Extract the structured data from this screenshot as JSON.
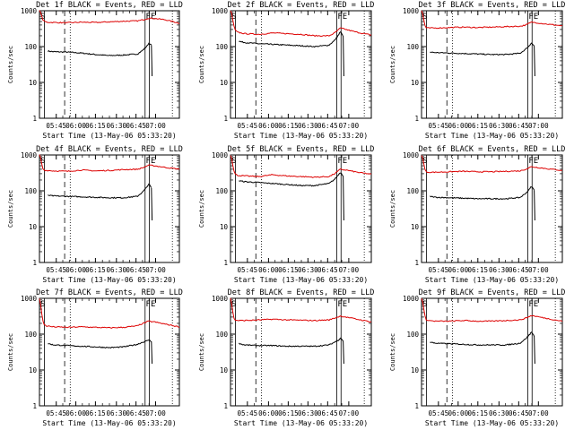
{
  "chart_data": [
    {
      "type": "line",
      "title": "Det 1f BLACK = Events, RED = LLD",
      "xlabel": "Start Time (13-May-06 05:33:20)",
      "ylabel": "Counts/sec",
      "ylim": [
        1,
        1000
      ],
      "yscale": "log",
      "yticks": [
        "1",
        "10",
        "100",
        "1000"
      ],
      "xticks": [
        "05:45",
        "06:00",
        "06:15",
        "06:30",
        "06:45",
        "07:00"
      ],
      "markers": [
        "S",
        "FE"
      ],
      "series": [
        {
          "color": "#000000",
          "x": [
            0.06,
            0.1,
            0.2,
            0.3,
            0.4,
            0.5,
            0.6,
            0.7,
            0.74,
            0.77,
            0.78,
            0.8
          ],
          "y": [
            75,
            72,
            70,
            66,
            60,
            56,
            58,
            62,
            80,
            105,
            125,
            110
          ]
        },
        {
          "color": "#dd0000",
          "x": [
            0.0,
            0.01,
            0.02,
            0.03,
            0.05,
            0.1,
            0.2,
            0.3,
            0.4,
            0.5,
            0.6,
            0.7,
            0.74,
            0.78,
            0.82,
            0.9,
            1.0
          ],
          "y": [
            1000,
            900,
            600,
            520,
            480,
            470,
            460,
            480,
            470,
            490,
            510,
            520,
            560,
            620,
            610,
            560,
            450
          ]
        }
      ]
    },
    {
      "type": "line",
      "title": "Det 2f BLACK = Events, RED = LLD",
      "xlabel": "Start Time (13-May-06 05:33:20)",
      "ylabel": "Counts/sec",
      "ylim": [
        1,
        1000
      ],
      "yscale": "log",
      "yticks": [
        "1",
        "10",
        "100",
        "1000"
      ],
      "xticks": [
        "05:45",
        "06:00",
        "06:15",
        "06:30",
        "06:45",
        "07:00"
      ],
      "markers": [
        "S",
        "FE"
      ],
      "series": [
        {
          "color": "#000000",
          "x": [
            0.06,
            0.1,
            0.2,
            0.3,
            0.4,
            0.5,
            0.6,
            0.7,
            0.74,
            0.77,
            0.78,
            0.8
          ],
          "y": [
            140,
            130,
            120,
            115,
            110,
            105,
            100,
            110,
            150,
            220,
            260,
            200
          ]
        },
        {
          "color": "#dd0000",
          "x": [
            0.0,
            0.01,
            0.02,
            0.03,
            0.05,
            0.1,
            0.2,
            0.3,
            0.4,
            0.5,
            0.6,
            0.7,
            0.74,
            0.78,
            0.82,
            0.9,
            1.0
          ],
          "y": [
            1000,
            800,
            450,
            300,
            250,
            230,
            220,
            240,
            230,
            220,
            200,
            200,
            240,
            330,
            300,
            250,
            210
          ]
        }
      ]
    },
    {
      "type": "line",
      "title": "Det 3f BLACK = Events, RED = LLD",
      "xlabel": "Start Time (13-May-06 05:33:20)",
      "ylabel": "Counts/sec",
      "ylim": [
        1,
        1000
      ],
      "yscale": "log",
      "yticks": [
        "1",
        "10",
        "100",
        "1000"
      ],
      "xticks": [
        "05:45",
        "06:00",
        "06:15",
        "06:30",
        "06:45",
        "07:00"
      ],
      "markers": [
        "S",
        "FE"
      ],
      "series": [
        {
          "color": "#000000",
          "x": [
            0.06,
            0.1,
            0.2,
            0.3,
            0.4,
            0.5,
            0.6,
            0.7,
            0.74,
            0.77,
            0.78,
            0.8
          ],
          "y": [
            70,
            68,
            66,
            64,
            62,
            60,
            60,
            65,
            85,
            110,
            130,
            105
          ]
        },
        {
          "color": "#dd0000",
          "x": [
            0.0,
            0.01,
            0.02,
            0.03,
            0.05,
            0.1,
            0.2,
            0.3,
            0.4,
            0.5,
            0.6,
            0.7,
            0.74,
            0.78,
            0.82,
            0.9,
            1.0
          ],
          "y": [
            1000,
            800,
            450,
            330,
            330,
            330,
            340,
            350,
            340,
            350,
            360,
            370,
            400,
            480,
            460,
            420,
            380
          ]
        }
      ]
    },
    {
      "type": "line",
      "title": "Det 4f BLACK = Events, RED = LLD",
      "xlabel": "Start Time (13-May-06 05:33:20)",
      "ylabel": "Counts/sec",
      "ylim": [
        1,
        1000
      ],
      "yscale": "log",
      "yticks": [
        "1",
        "10",
        "100",
        "1000"
      ],
      "xticks": [
        "05:45",
        "06:00",
        "06:15",
        "06:30",
        "06:45",
        "07:00"
      ],
      "markers": [
        "S",
        "FE"
      ],
      "series": [
        {
          "color": "#000000",
          "x": [
            0.06,
            0.1,
            0.2,
            0.3,
            0.4,
            0.5,
            0.6,
            0.7,
            0.74,
            0.77,
            0.78,
            0.8
          ],
          "y": [
            75,
            72,
            70,
            68,
            66,
            64,
            64,
            70,
            95,
            130,
            160,
            120
          ]
        },
        {
          "color": "#dd0000",
          "x": [
            0.0,
            0.01,
            0.02,
            0.03,
            0.05,
            0.1,
            0.2,
            0.3,
            0.4,
            0.5,
            0.6,
            0.7,
            0.74,
            0.78,
            0.82,
            0.9,
            1.0
          ],
          "y": [
            1000,
            800,
            450,
            380,
            370,
            360,
            350,
            380,
            360,
            370,
            390,
            400,
            440,
            520,
            500,
            450,
            400
          ]
        }
      ]
    },
    {
      "type": "line",
      "title": "Det 5f BLACK = Events, RED = LLD",
      "xlabel": "Start Time (13-May-06 05:33:20)",
      "ylabel": "Counts/sec",
      "ylim": [
        1,
        1000
      ],
      "yscale": "log",
      "yticks": [
        "1",
        "10",
        "100",
        "1000"
      ],
      "xticks": [
        "05:45",
        "06:00",
        "06:15",
        "06:30",
        "06:45",
        "07:00"
      ],
      "markers": [
        "S",
        "FE"
      ],
      "series": [
        {
          "color": "#000000",
          "x": [
            0.06,
            0.1,
            0.2,
            0.3,
            0.4,
            0.5,
            0.6,
            0.7,
            0.74,
            0.77,
            0.78,
            0.8
          ],
          "y": [
            190,
            180,
            170,
            160,
            150,
            140,
            140,
            160,
            210,
            290,
            330,
            260
          ]
        },
        {
          "color": "#dd0000",
          "x": [
            0.0,
            0.01,
            0.02,
            0.03,
            0.05,
            0.1,
            0.2,
            0.3,
            0.4,
            0.5,
            0.6,
            0.7,
            0.74,
            0.78,
            0.82,
            0.9,
            1.0
          ],
          "y": [
            1000,
            800,
            420,
            300,
            270,
            260,
            250,
            280,
            260,
            250,
            240,
            250,
            300,
            400,
            380,
            330,
            290
          ]
        }
      ]
    },
    {
      "type": "line",
      "title": "Det 6f BLACK = Events, RED = LLD",
      "xlabel": "Start Time (13-May-06 05:33:20)",
      "ylabel": "Counts/sec",
      "ylim": [
        1,
        1000
      ],
      "yscale": "log",
      "yticks": [
        "1",
        "10",
        "100",
        "1000"
      ],
      "xticks": [
        "05:45",
        "06:00",
        "06:15",
        "06:30",
        "06:45",
        "07:00"
      ],
      "markers": [
        "S",
        "FE"
      ],
      "series": [
        {
          "color": "#000000",
          "x": [
            0.06,
            0.1,
            0.2,
            0.3,
            0.4,
            0.5,
            0.6,
            0.7,
            0.74,
            0.77,
            0.78,
            0.8
          ],
          "y": [
            70,
            66,
            64,
            62,
            60,
            60,
            60,
            65,
            85,
            115,
            135,
            105
          ]
        },
        {
          "color": "#dd0000",
          "x": [
            0.0,
            0.01,
            0.02,
            0.03,
            0.05,
            0.1,
            0.2,
            0.3,
            0.4,
            0.5,
            0.6,
            0.7,
            0.74,
            0.78,
            0.82,
            0.9,
            1.0
          ],
          "y": [
            1000,
            800,
            450,
            340,
            330,
            330,
            340,
            350,
            340,
            340,
            350,
            360,
            400,
            470,
            450,
            410,
            370
          ]
        }
      ]
    },
    {
      "type": "line",
      "title": "Det 7f BLACK = Events, RED = LLD",
      "xlabel": "Start Time (13-May-06 05:33:20)",
      "ylabel": "Counts/sec",
      "ylim": [
        1,
        1000
      ],
      "yscale": "log",
      "yticks": [
        "1",
        "10",
        "100",
        "1000"
      ],
      "xticks": [
        "05:45",
        "06:00",
        "06:15",
        "06:30",
        "06:45",
        "07:00"
      ],
      "markers": [
        "S",
        "FE"
      ],
      "series": [
        {
          "color": "#000000",
          "x": [
            0.06,
            0.1,
            0.2,
            0.3,
            0.4,
            0.5,
            0.6,
            0.7,
            0.74,
            0.77,
            0.78,
            0.8
          ],
          "y": [
            55,
            50,
            48,
            46,
            44,
            42,
            44,
            52,
            60,
            65,
            70,
            62
          ]
        },
        {
          "color": "#dd0000",
          "x": [
            0.0,
            0.01,
            0.02,
            0.03,
            0.05,
            0.1,
            0.2,
            0.3,
            0.4,
            0.5,
            0.6,
            0.7,
            0.74,
            0.78,
            0.82,
            0.9,
            1.0
          ],
          "y": [
            1000,
            600,
            280,
            190,
            170,
            160,
            155,
            160,
            155,
            150,
            155,
            170,
            200,
            230,
            220,
            190,
            160
          ]
        }
      ]
    },
    {
      "type": "line",
      "title": "Det 8f BLACK = Events, RED = LLD",
      "xlabel": "Start Time (13-May-06 05:33:20)",
      "ylabel": "Counts/sec",
      "ylim": [
        1,
        1000
      ],
      "yscale": "log",
      "yticks": [
        "1",
        "10",
        "100",
        "1000"
      ],
      "xticks": [
        "05:45",
        "06:00",
        "06:15",
        "06:30",
        "06:45",
        "07:00"
      ],
      "markers": [
        "S",
        "FE"
      ],
      "series": [
        {
          "color": "#000000",
          "x": [
            0.06,
            0.1,
            0.2,
            0.3,
            0.4,
            0.5,
            0.6,
            0.7,
            0.74,
            0.77,
            0.78,
            0.8
          ],
          "y": [
            55,
            50,
            48,
            48,
            46,
            46,
            46,
            50,
            60,
            70,
            80,
            65
          ]
        },
        {
          "color": "#dd0000",
          "x": [
            0.0,
            0.01,
            0.02,
            0.03,
            0.05,
            0.1,
            0.2,
            0.3,
            0.4,
            0.5,
            0.6,
            0.7,
            0.74,
            0.78,
            0.82,
            0.9,
            1.0
          ],
          "y": [
            1000,
            650,
            320,
            250,
            240,
            240,
            250,
            260,
            250,
            245,
            240,
            250,
            280,
            320,
            300,
            260,
            220
          ]
        }
      ]
    },
    {
      "type": "line",
      "title": "Det 9f BLACK = Events, RED = LLD",
      "xlabel": "Start Time (13-May-06 05:33:20)",
      "ylabel": "Counts/sec",
      "ylim": [
        1,
        1000
      ],
      "yscale": "log",
      "yticks": [
        "1",
        "10",
        "100",
        "1000"
      ],
      "xticks": [
        "05:45",
        "06:00",
        "06:15",
        "06:30",
        "06:45",
        "07:00"
      ],
      "markers": [
        "S",
        "FE"
      ],
      "series": [
        {
          "color": "#000000",
          "x": [
            0.06,
            0.1,
            0.2,
            0.3,
            0.4,
            0.5,
            0.6,
            0.7,
            0.74,
            0.77,
            0.78,
            0.8
          ],
          "y": [
            60,
            56,
            54,
            52,
            50,
            50,
            50,
            56,
            75,
            100,
            115,
            90
          ]
        },
        {
          "color": "#dd0000",
          "x": [
            0.0,
            0.01,
            0.02,
            0.03,
            0.05,
            0.1,
            0.2,
            0.3,
            0.4,
            0.5,
            0.6,
            0.7,
            0.74,
            0.78,
            0.82,
            0.9,
            1.0
          ],
          "y": [
            1000,
            750,
            380,
            260,
            240,
            230,
            230,
            240,
            230,
            230,
            240,
            250,
            280,
            330,
            310,
            270,
            230
          ]
        }
      ]
    }
  ]
}
